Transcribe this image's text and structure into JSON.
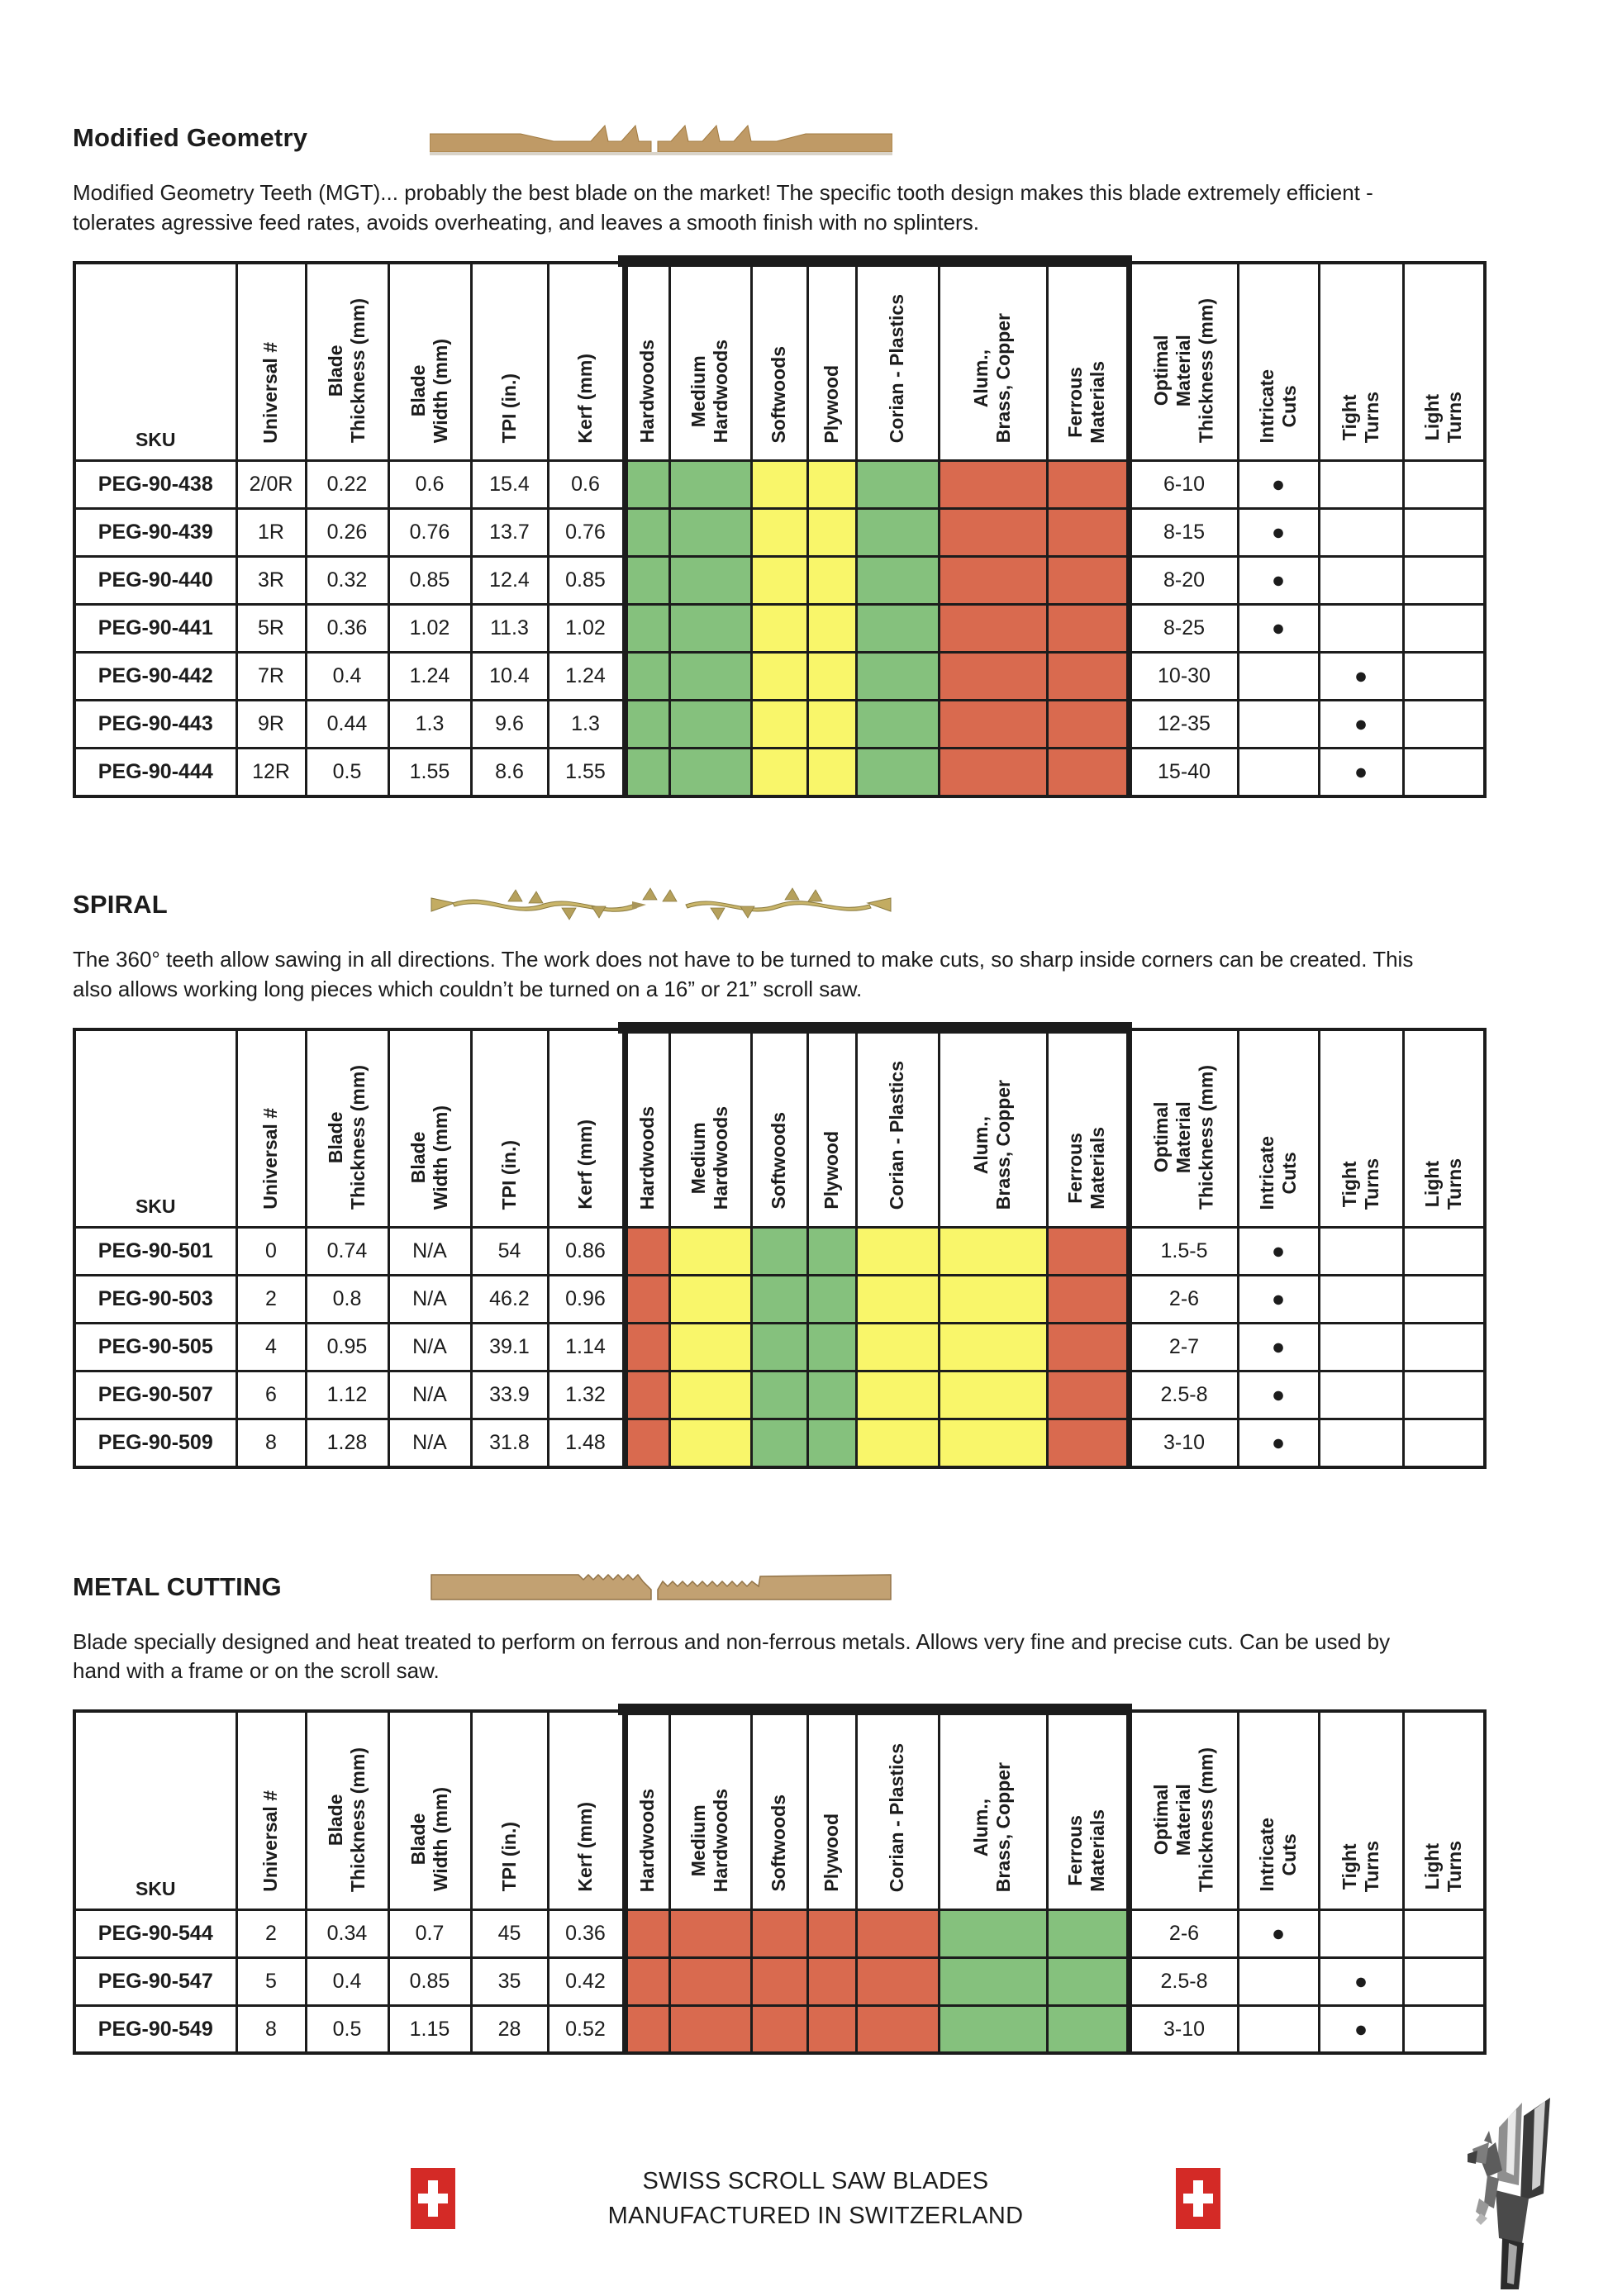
{
  "dot": "●",
  "material_colors": {
    "green": "#85c17d",
    "yellow": "#f9f66a",
    "red": "#d96a4f"
  },
  "table_headers": [
    "SKU",
    "Universal #",
    "Blade\nThickness (mm)",
    "Blade\nWidth (mm)",
    "TPI (in.)",
    "Kerf (mm)",
    "Hardwoods",
    "Medium\nHardwoods",
    "Softwoods",
    "Plywood",
    "Corian  - Plastics",
    "Alum.,\nBrass, Copper",
    "Ferrous\nMaterials",
    "Optimal\nMaterial\nThickness (mm)",
    "Intricate\nCuts",
    "Tight\nTurns",
    "Light\nTurns"
  ],
  "sections": [
    {
      "title": "Modified Geometry",
      "description": "Modified Geometry Teeth (MGT)... probably the best blade on the market! The specific tooth design makes this blade extremely efficient - tolerates agressive feed rates, avoids overheating, and leaves a smooth finish with no splinters.",
      "table": {
        "rows": [
          {
            "sku": "PEG-90-438",
            "universal": "2/0R",
            "thickness": "0.22",
            "width": "0.6",
            "tpi": "15.4",
            "kerf": "0.6",
            "materials": [
              "green",
              "green",
              "yellow",
              "yellow",
              "green",
              "red",
              "red"
            ],
            "optimal": "6-10",
            "mark": "intricate"
          },
          {
            "sku": "PEG-90-439",
            "universal": "1R",
            "thickness": "0.26",
            "width": "0.76",
            "tpi": "13.7",
            "kerf": "0.76",
            "materials": [
              "green",
              "green",
              "yellow",
              "yellow",
              "green",
              "red",
              "red"
            ],
            "optimal": "8-15",
            "mark": "intricate"
          },
          {
            "sku": "PEG-90-440",
            "universal": "3R",
            "thickness": "0.32",
            "width": "0.85",
            "tpi": "12.4",
            "kerf": "0.85",
            "materials": [
              "green",
              "green",
              "yellow",
              "yellow",
              "green",
              "red",
              "red"
            ],
            "optimal": "8-20",
            "mark": "intricate"
          },
          {
            "sku": "PEG-90-441",
            "universal": "5R",
            "thickness": "0.36",
            "width": "1.02",
            "tpi": "11.3",
            "kerf": "1.02",
            "materials": [
              "green",
              "green",
              "yellow",
              "yellow",
              "green",
              "red",
              "red"
            ],
            "optimal": "8-25",
            "mark": "intricate"
          },
          {
            "sku": "PEG-90-442",
            "universal": "7R",
            "thickness": "0.4",
            "width": "1.24",
            "tpi": "10.4",
            "kerf": "1.24",
            "materials": [
              "green",
              "green",
              "yellow",
              "yellow",
              "green",
              "red",
              "red"
            ],
            "optimal": "10-30",
            "mark": "tight"
          },
          {
            "sku": "PEG-90-443",
            "universal": "9R",
            "thickness": "0.44",
            "width": "1.3",
            "tpi": "9.6",
            "kerf": "1.3",
            "materials": [
              "green",
              "green",
              "yellow",
              "yellow",
              "green",
              "red",
              "red"
            ],
            "optimal": "12-35",
            "mark": "tight"
          },
          {
            "sku": "PEG-90-444",
            "universal": "12R",
            "thickness": "0.5",
            "width": "1.55",
            "tpi": "8.6",
            "kerf": "1.55",
            "materials": [
              "green",
              "green",
              "yellow",
              "yellow",
              "green",
              "red",
              "red"
            ],
            "optimal": "15-40",
            "mark": "tight"
          }
        ]
      }
    },
    {
      "title": "SPIRAL",
      "description": "The 360° teeth allow sawing in all directions. The work does not have to be turned to make cuts, so sharp inside corners can be created. This also allows working long pieces which couldn’t be turned on a 16” or 21” scroll saw.",
      "table": {
        "rows": [
          {
            "sku": "PEG-90-501",
            "universal": "0",
            "thickness": "0.74",
            "width": "N/A",
            "tpi": "54",
            "kerf": "0.86",
            "materials": [
              "red",
              "yellow",
              "green",
              "green",
              "yellow",
              "yellow",
              "red"
            ],
            "optimal": "1.5-5",
            "mark": "intricate"
          },
          {
            "sku": "PEG-90-503",
            "universal": "2",
            "thickness": "0.8",
            "width": "N/A",
            "tpi": "46.2",
            "kerf": "0.96",
            "materials": [
              "red",
              "yellow",
              "green",
              "green",
              "yellow",
              "yellow",
              "red"
            ],
            "optimal": "2-6",
            "mark": "intricate"
          },
          {
            "sku": "PEG-90-505",
            "universal": "4",
            "thickness": "0.95",
            "width": "N/A",
            "tpi": "39.1",
            "kerf": "1.14",
            "materials": [
              "red",
              "yellow",
              "green",
              "green",
              "yellow",
              "yellow",
              "red"
            ],
            "optimal": "2-7",
            "mark": "intricate"
          },
          {
            "sku": "PEG-90-507",
            "universal": "6",
            "thickness": "1.12",
            "width": "N/A",
            "tpi": "33.9",
            "kerf": "1.32",
            "materials": [
              "red",
              "yellow",
              "green",
              "green",
              "yellow",
              "yellow",
              "red"
            ],
            "optimal": "2.5-8",
            "mark": "intricate"
          },
          {
            "sku": "PEG-90-509",
            "universal": "8",
            "thickness": "1.28",
            "width": "N/A",
            "tpi": "31.8",
            "kerf": "1.48",
            "materials": [
              "red",
              "yellow",
              "green",
              "green",
              "yellow",
              "yellow",
              "red"
            ],
            "optimal": "3-10",
            "mark": "intricate"
          }
        ]
      }
    },
    {
      "title": "METAL CUTTING",
      "description": "Blade specially designed and heat treated to perform on ferrous and non-ferrous metals. Allows very fine and precise cuts. Can be used by hand with a frame or on the scroll saw.",
      "table": {
        "rows": [
          {
            "sku": "PEG-90-544",
            "universal": "2",
            "thickness": "0.34",
            "width": "0.7",
            "tpi": "45",
            "kerf": "0.36",
            "materials": [
              "red",
              "red",
              "red",
              "red",
              "red",
              "green",
              "green"
            ],
            "optimal": "2-6",
            "mark": "intricate"
          },
          {
            "sku": "PEG-90-547",
            "universal": "5",
            "thickness": "0.4",
            "width": "0.85",
            "tpi": "35",
            "kerf": "0.42",
            "materials": [
              "red",
              "red",
              "red",
              "red",
              "red",
              "green",
              "green"
            ],
            "optimal": "2.5-8",
            "mark": "tight"
          },
          {
            "sku": "PEG-90-549",
            "universal": "8",
            "thickness": "0.5",
            "width": "1.15",
            "tpi": "28",
            "kerf": "0.52",
            "materials": [
              "red",
              "red",
              "red",
              "red",
              "red",
              "green",
              "green"
            ],
            "optimal": "3-10",
            "mark": "tight"
          }
        ]
      }
    }
  ],
  "footer": {
    "line1": "SWISS SCROLL SAW BLADES",
    "line2": "MANUFACTURED IN SWITZERLAND"
  }
}
